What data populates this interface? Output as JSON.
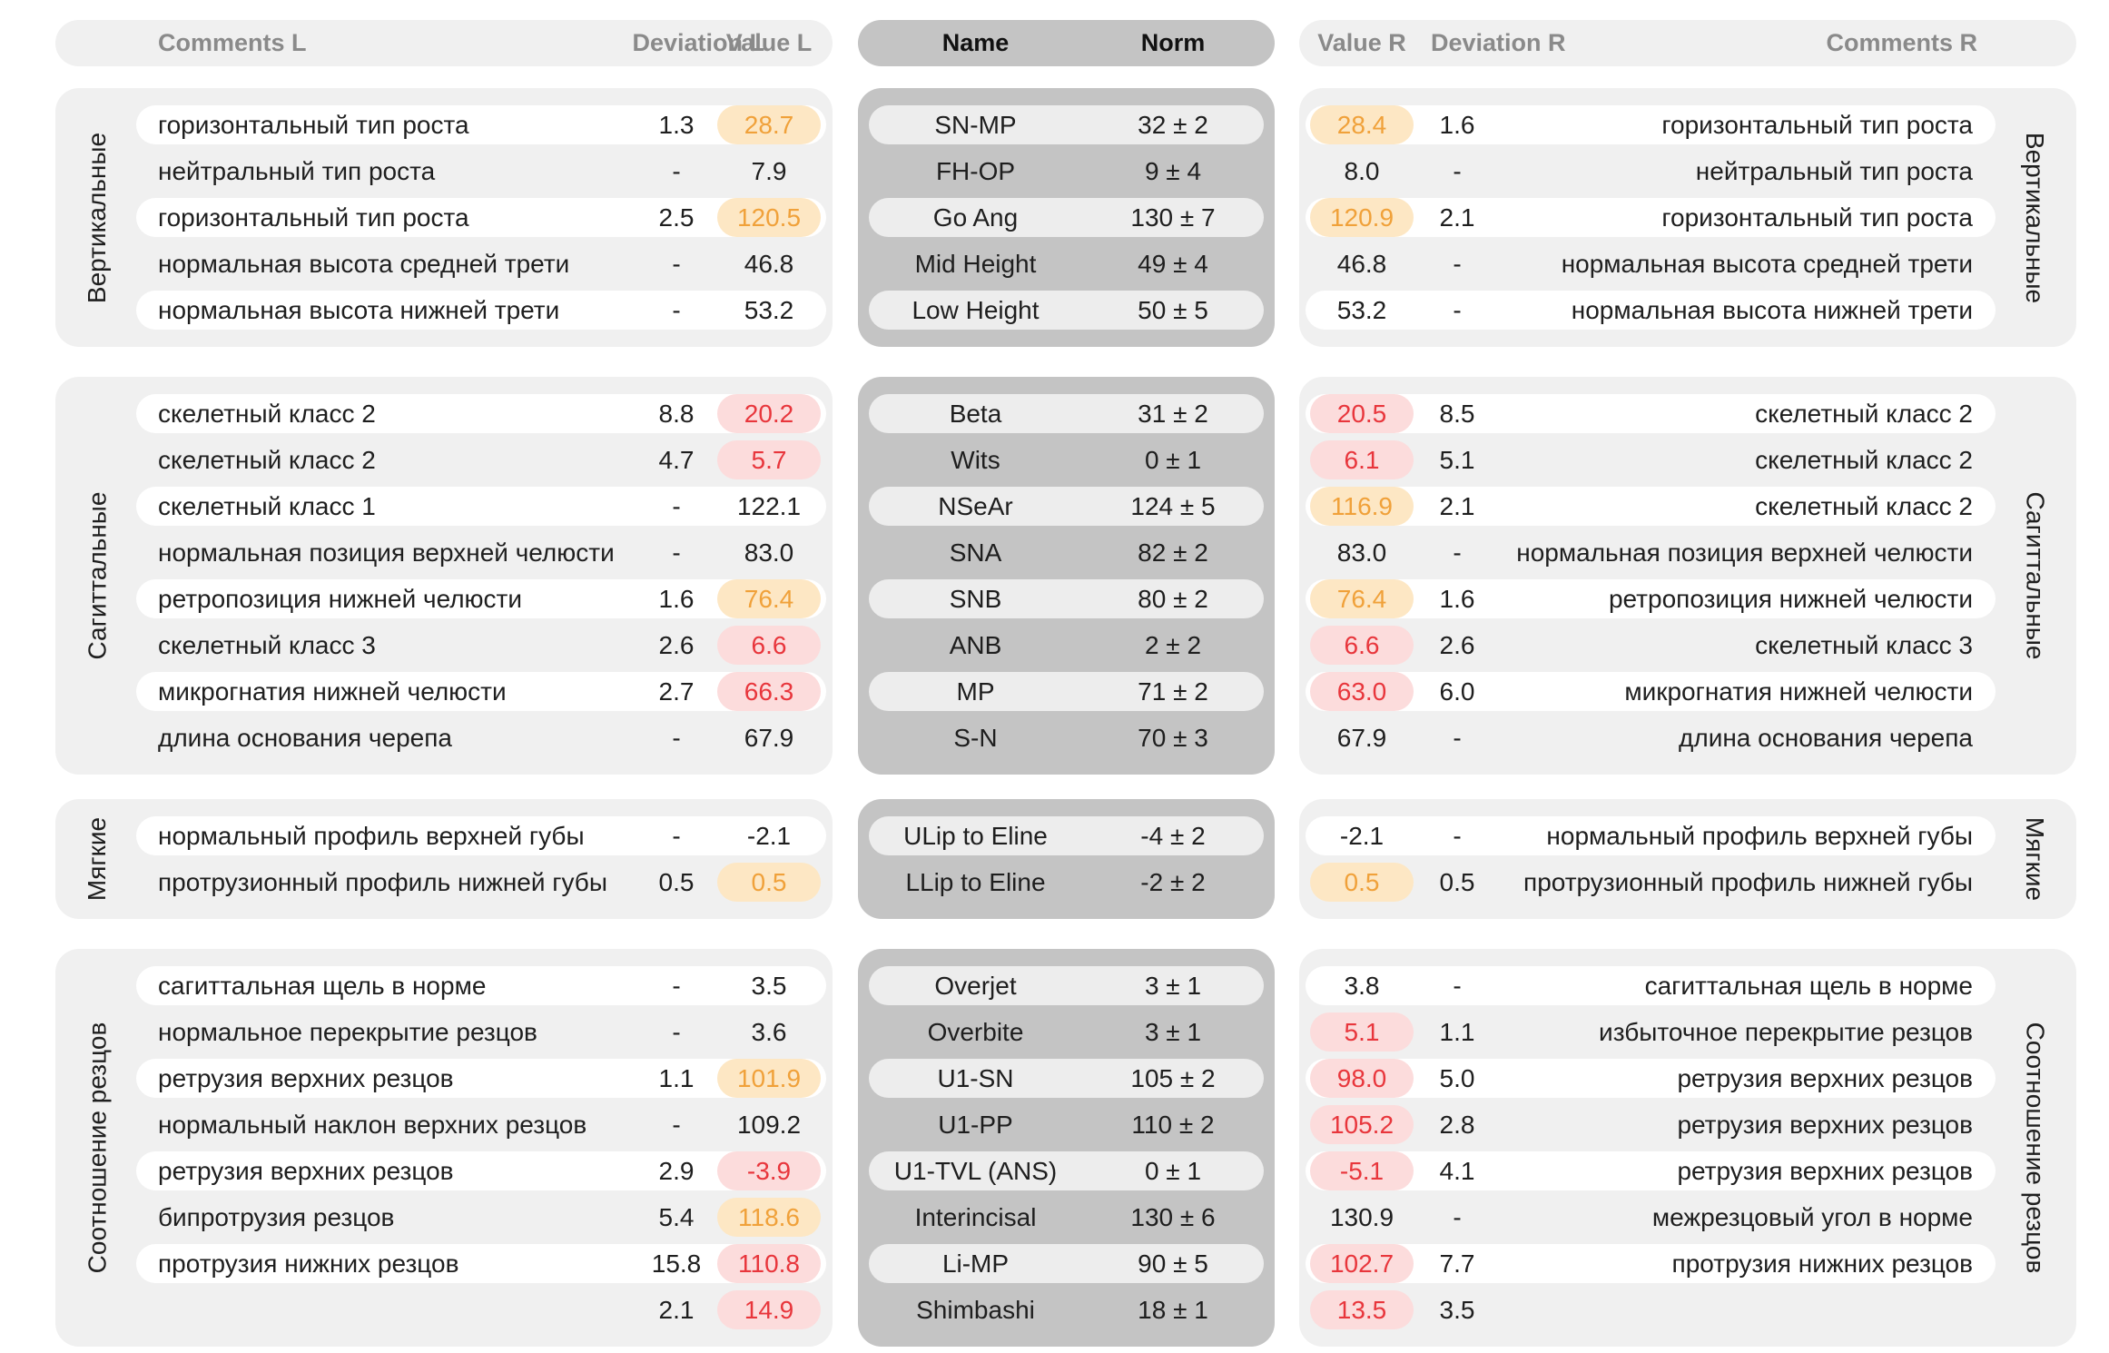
{
  "headers": {
    "left": {
      "comments": "Comments L",
      "deviation": "Deviation L",
      "value": "Value L"
    },
    "middle": {
      "name": "Name",
      "norm": "Norm"
    },
    "right": {
      "value": "Value R",
      "deviation": "Deviation R",
      "comments": "Comments R"
    }
  },
  "colors": {
    "panel_side": "#f0f0f0",
    "panel_middle": "#c4c4c4",
    "orange_bg": "#fde7c4",
    "orange_text": "#f0a13a",
    "red_bg": "#fcdcdc",
    "red_text": "#e8363c"
  },
  "groups": [
    {
      "label": "Вертикальные",
      "rows": [
        {
          "comment_l": "горизонтальный тип роста",
          "dev_l": "1.3",
          "val_l": "28.7",
          "status_l": "orange",
          "name": "SN-MP",
          "norm": "32 ± 2",
          "val_r": "28.4",
          "status_r": "orange",
          "dev_r": "1.6",
          "comment_r": "горизонтальный тип роста"
        },
        {
          "comment_l": "нейтральный тип роста",
          "dev_l": "-",
          "val_l": "7.9",
          "status_l": "none",
          "name": "FH-OP",
          "norm": "9 ± 4",
          "val_r": "8.0",
          "status_r": "none",
          "dev_r": "-",
          "comment_r": "нейтральный тип роста"
        },
        {
          "comment_l": "горизонтальный тип роста",
          "dev_l": "2.5",
          "val_l": "120.5",
          "status_l": "orange",
          "name": "Go Ang",
          "norm": "130 ± 7",
          "val_r": "120.9",
          "status_r": "orange",
          "dev_r": "2.1",
          "comment_r": "горизонтальный тип роста"
        },
        {
          "comment_l": "нормальная высота средней трети",
          "dev_l": "-",
          "val_l": "46.8",
          "status_l": "none",
          "name": "Mid Height",
          "norm": "49 ± 4",
          "val_r": "46.8",
          "status_r": "none",
          "dev_r": "-",
          "comment_r": "нормальная высота средней трети"
        },
        {
          "comment_l": "нормальная высота нижней трети",
          "dev_l": "-",
          "val_l": "53.2",
          "status_l": "none",
          "name": "Low Height",
          "norm": "50 ± 5",
          "val_r": "53.2",
          "status_r": "none",
          "dev_r": "-",
          "comment_r": "нормальная высота нижней трети"
        }
      ]
    },
    {
      "label": "Сагиттальные",
      "rows": [
        {
          "comment_l": "скелетный класс 2",
          "dev_l": "8.8",
          "val_l": "20.2",
          "status_l": "red",
          "name": "Beta",
          "norm": "31 ± 2",
          "val_r": "20.5",
          "status_r": "red",
          "dev_r": "8.5",
          "comment_r": "скелетный класс 2"
        },
        {
          "comment_l": "скелетный класс 2",
          "dev_l": "4.7",
          "val_l": "5.7",
          "status_l": "red",
          "name": "Wits",
          "norm": "0 ± 1",
          "val_r": "6.1",
          "status_r": "red",
          "dev_r": "5.1",
          "comment_r": "скелетный класс 2"
        },
        {
          "comment_l": "скелетный класс 1",
          "dev_l": "-",
          "val_l": "122.1",
          "status_l": "none",
          "name": "NSeAr",
          "norm": "124 ± 5",
          "val_r": "116.9",
          "status_r": "orange",
          "dev_r": "2.1",
          "comment_r": "скелетный класс 2"
        },
        {
          "comment_l": "нормальная позиция верхней челюсти",
          "dev_l": "-",
          "val_l": "83.0",
          "status_l": "none",
          "name": "SNA",
          "norm": "82 ± 2",
          "val_r": "83.0",
          "status_r": "none",
          "dev_r": "-",
          "comment_r": "нормальная позиция верхней челюсти"
        },
        {
          "comment_l": "ретропозиция нижней челюсти",
          "dev_l": "1.6",
          "val_l": "76.4",
          "status_l": "orange",
          "name": "SNB",
          "norm": "80 ± 2",
          "val_r": "76.4",
          "status_r": "orange",
          "dev_r": "1.6",
          "comment_r": "ретропозиция нижней челюсти"
        },
        {
          "comment_l": "скелетный класс 3",
          "dev_l": "2.6",
          "val_l": "6.6",
          "status_l": "red",
          "name": "ANB",
          "norm": "2 ± 2",
          "val_r": "6.6",
          "status_r": "red",
          "dev_r": "2.6",
          "comment_r": "скелетный класс 3"
        },
        {
          "comment_l": "микрогнатия нижней челюсти",
          "dev_l": "2.7",
          "val_l": "66.3",
          "status_l": "red",
          "name": "MP",
          "norm": "71 ± 2",
          "val_r": "63.0",
          "status_r": "red",
          "dev_r": "6.0",
          "comment_r": "микрогнатия нижней челюсти"
        },
        {
          "comment_l": "длина основания черепа",
          "dev_l": "-",
          "val_l": "67.9",
          "status_l": "none",
          "name": "S-N",
          "norm": "70 ± 3",
          "val_r": "67.9",
          "status_r": "none",
          "dev_r": "-",
          "comment_r": "длина основания черепа"
        }
      ]
    },
    {
      "label": "Мягкие",
      "rows": [
        {
          "comment_l": "нормальный профиль верхней губы",
          "dev_l": "-",
          "val_l": "-2.1",
          "status_l": "none",
          "name": "ULip to Eline",
          "norm": "-4 ± 2",
          "val_r": "-2.1",
          "status_r": "none",
          "dev_r": "-",
          "comment_r": "нормальный профиль верхней губы"
        },
        {
          "comment_l": "протрузионный профиль нижней губы",
          "dev_l": "0.5",
          "val_l": "0.5",
          "status_l": "orange",
          "name": "LLip to Eline",
          "norm": "-2 ± 2",
          "val_r": "0.5",
          "status_r": "orange",
          "dev_r": "0.5",
          "comment_r": "протрузионный профиль нижней губы"
        }
      ]
    },
    {
      "label": "Соотношение резцов",
      "rows": [
        {
          "comment_l": "сагиттальная щель в норме",
          "dev_l": "-",
          "val_l": "3.5",
          "status_l": "none",
          "name": "Overjet",
          "norm": "3 ± 1",
          "val_r": "3.8",
          "status_r": "none",
          "dev_r": "-",
          "comment_r": "сагиттальная щель в норме"
        },
        {
          "comment_l": "нормальное перекрытие резцов",
          "dev_l": "-",
          "val_l": "3.6",
          "status_l": "none",
          "name": "Overbite",
          "norm": "3 ± 1",
          "val_r": "5.1",
          "status_r": "red",
          "dev_r": "1.1",
          "comment_r": "избыточное перекрытие резцов"
        },
        {
          "comment_l": "ретрузия верхних резцов",
          "dev_l": "1.1",
          "val_l": "101.9",
          "status_l": "orange",
          "name": "U1-SN",
          "norm": "105 ± 2",
          "val_r": "98.0",
          "status_r": "red",
          "dev_r": "5.0",
          "comment_r": "ретрузия верхних резцов"
        },
        {
          "comment_l": "нормальный наклон верхних резцов",
          "dev_l": "-",
          "val_l": "109.2",
          "status_l": "none",
          "name": "U1-PP",
          "norm": "110 ± 2",
          "val_r": "105.2",
          "status_r": "red",
          "dev_r": "2.8",
          "comment_r": "ретрузия верхних резцов"
        },
        {
          "comment_l": "ретрузия верхних резцов",
          "dev_l": "2.9",
          "val_l": "-3.9",
          "status_l": "red",
          "name": "U1-TVL (ANS)",
          "norm": "0 ± 1",
          "val_r": "-5.1",
          "status_r": "red",
          "dev_r": "4.1",
          "comment_r": "ретрузия верхних резцов"
        },
        {
          "comment_l": "бипротрузия резцов",
          "dev_l": "5.4",
          "val_l": "118.6",
          "status_l": "orange",
          "name": "Interincisal",
          "norm": "130 ± 6",
          "val_r": "130.9",
          "status_r": "none",
          "dev_r": "-",
          "comment_r": "межрезцовый угол в норме"
        },
        {
          "comment_l": "протрузия нижних резцов",
          "dev_l": "15.8",
          "val_l": "110.8",
          "status_l": "red",
          "name": "Li-MP",
          "norm": "90 ± 5",
          "val_r": "102.7",
          "status_r": "red",
          "dev_r": "7.7",
          "comment_r": "протрузия нижних резцов"
        },
        {
          "comment_l": "",
          "dev_l": "2.1",
          "val_l": "14.9",
          "status_l": "red",
          "name": "Shimbashi",
          "norm": "18 ± 1",
          "val_r": "13.5",
          "status_r": "red",
          "dev_r": "3.5",
          "comment_r": ""
        }
      ]
    }
  ]
}
